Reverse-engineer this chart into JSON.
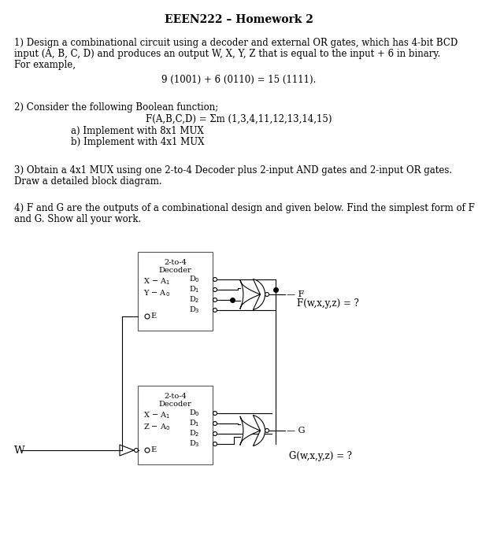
{
  "title": "EEEN222 – Homework 2",
  "q1_line1": "1) Design a combinational circuit using a decoder and external OR gates, which has 4-bit BCD",
  "q1_line2": "input (A, B, C, D) and produces an output W, X, Y, Z that is equal to the input + 6 in binary.",
  "q1_line3": "For example,",
  "q1_example": "9 (1001) + 6 (0110) = 15 (1111).",
  "q2_line1": "2) Consider the following Boolean function;",
  "q2_func": "F(A,B,C,D) = Σm (1,3,4,11,12,13,14,15)",
  "q2_a": "a) Implement with 8x1 MUX",
  "q2_b": "b) Implement with 4x1 MUX",
  "q3_line1": "3) Obtain a 4x1 MUX using one 2-to-4 Decoder plus 2-input AND gates and 2-input OR gates.",
  "q3_line2": "Draw a detailed block diagram.",
  "q4_line1": "4) F and G are the outputs of a combinational design and given below. Find the simplest form of F",
  "q4_line2": "and G. Show all your work.",
  "F_label": "F(w,x,y,z) = ?",
  "G_label": "G(w,x,y,z) = ?",
  "bg_color": "#ffffff",
  "text_color": "#000000",
  "body_fontsize": 8.5,
  "title_fontsize": 10,
  "circ_fontsize": 7.0
}
